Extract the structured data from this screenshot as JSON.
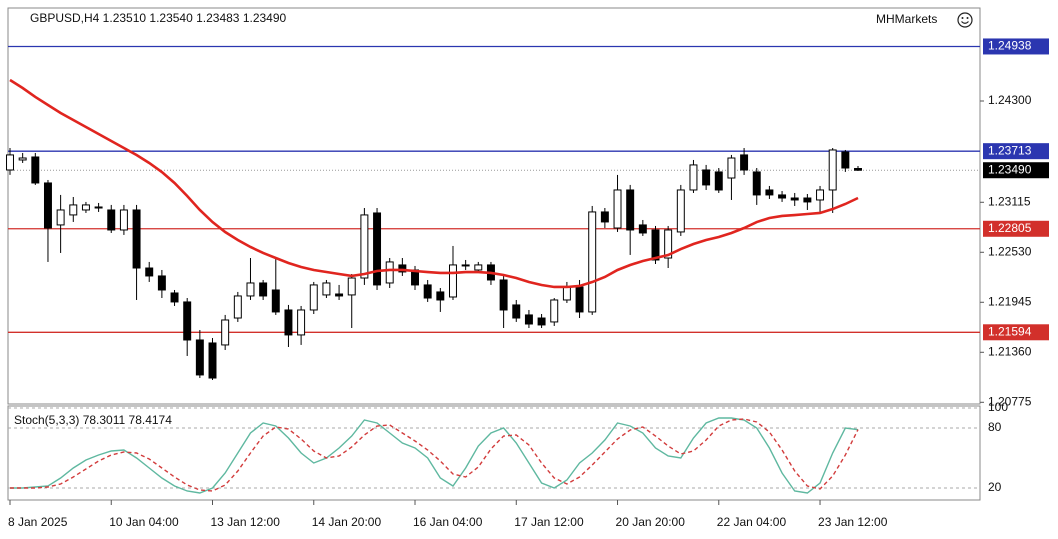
{
  "chart_data": [
    {
      "type": "candlestick",
      "title": "GBPUSD,H4 1.23510 1.23540 1.23483 1.23490",
      "brand": "MHMarkets",
      "categories": [
        "8 Jan 2025",
        null,
        null,
        null,
        null,
        null,
        null,
        null,
        "10 Jan 04:00",
        null,
        null,
        null,
        null,
        null,
        null,
        null,
        "13 Jan 12:00",
        null,
        null,
        null,
        null,
        null,
        null,
        null,
        "14 Jan 20:00",
        null,
        null,
        null,
        null,
        null,
        null,
        null,
        "16 Jan 04:00",
        null,
        null,
        null,
        null,
        null,
        null,
        null,
        "17 Jan 12:00",
        null,
        null,
        null,
        null,
        null,
        null,
        null,
        "20 Jan 20:00",
        null,
        null,
        null,
        null,
        null,
        null,
        null,
        "22 Jan 04:00",
        null,
        null,
        null,
        null,
        null,
        null,
        null,
        "23 Jan 12:00",
        null,
        null,
        null
      ],
      "open": [
        1.23493,
        1.2361,
        1.23645,
        1.23341,
        1.2285,
        1.22967,
        1.23025,
        1.23048,
        1.23025,
        1.22791,
        1.23025,
        1.22346,
        1.22253,
        1.22054,
        1.21949,
        1.21504,
        1.21469,
        1.21446,
        1.21761,
        1.22019,
        1.22171,
        1.22089,
        1.21855,
        1.21563,
        1.21855,
        1.22031,
        1.22042,
        1.22031,
        1.22229,
        1.2299,
        1.22171,
        1.22382,
        1.22323,
        1.22148,
        1.22066,
        1.22007,
        1.22382,
        1.22323,
        1.22382,
        1.22206,
        1.21914,
        1.21797,
        1.21761,
        1.21715,
        1.21972,
        1.22124,
        1.21832,
        1.23002,
        1.22814,
        1.23259,
        1.2285,
        1.22791,
        1.22463,
        1.22768,
        1.23259,
        1.23493,
        1.2347,
        1.23399,
        1.23669,
        1.2347,
        1.23259,
        1.23201,
        1.23165,
        1.23165,
        1.23142,
        1.23259,
        1.23704,
        1.2351
      ],
      "high": [
        1.2375,
        1.23692,
        1.23692,
        1.23376,
        1.23201,
        1.23177,
        1.23119,
        1.23107,
        1.23084,
        1.23084,
        1.23084,
        1.22417,
        1.22323,
        1.22089,
        1.21995,
        1.21621,
        1.21527,
        1.21797,
        1.22066,
        1.22463,
        1.22206,
        1.22463,
        1.21914,
        1.21902,
        1.22183,
        1.22206,
        1.22148,
        1.22276,
        1.23048,
        1.23048,
        1.22463,
        1.22463,
        1.2237,
        1.22206,
        1.22112,
        1.22604,
        1.2244,
        1.22417,
        1.22417,
        1.22253,
        1.21972,
        1.21855,
        1.21808,
        1.21995,
        1.22183,
        1.22206,
        1.23072,
        1.23048,
        1.23435,
        1.23318,
        1.22908,
        1.22838,
        1.22838,
        1.23318,
        1.2361,
        1.23552,
        1.23516,
        1.23669,
        1.2375,
        1.23516,
        1.23306,
        1.23247,
        1.23224,
        1.23212,
        1.23306,
        1.2375,
        1.23727,
        1.2354
      ],
      "low": [
        1.23435,
        1.23575,
        1.23318,
        1.22417,
        1.22522,
        1.22885,
        1.2299,
        1.23002,
        1.22756,
        1.22733,
        1.21972,
        1.22183,
        1.21995,
        1.21902,
        1.21317,
        1.21059,
        1.21036,
        1.21387,
        1.21715,
        1.21972,
        1.21972,
        1.21797,
        1.21422,
        1.21446,
        1.21808,
        1.21995,
        1.21972,
        1.21644,
        1.22148,
        1.22089,
        1.22112,
        1.22253,
        1.22089,
        1.21949,
        1.21832,
        1.21972,
        1.22323,
        1.22288,
        1.22148,
        1.21644,
        1.21715,
        1.21644,
        1.21644,
        1.21668,
        1.21937,
        1.21761,
        1.21797,
        1.22814,
        1.22768,
        1.22499,
        1.22721,
        1.22393,
        1.22346,
        1.22721,
        1.23224,
        1.23259,
        1.23224,
        1.23142,
        1.23435,
        1.23084,
        1.23154,
        1.23119,
        1.23072,
        1.23025,
        1.23002,
        1.2299,
        1.2347,
        1.23483
      ],
      "close": [
        1.23669,
        1.23633,
        1.23341,
        1.22814,
        1.23025,
        1.23084,
        1.23084,
        1.2306,
        1.22791,
        1.23025,
        1.22346,
        1.22253,
        1.22089,
        1.21949,
        1.21504,
        1.21095,
        1.21059,
        1.21738,
        1.22019,
        1.22171,
        1.22019,
        1.21832,
        1.21563,
        1.21855,
        1.22148,
        1.22171,
        1.22019,
        1.22229,
        1.22967,
        1.22148,
        1.22417,
        1.223,
        1.22148,
        1.21995,
        1.21972,
        1.22382,
        1.2237,
        1.22382,
        1.22206,
        1.21855,
        1.21761,
        1.21691,
        1.2168,
        1.21972,
        1.22124,
        1.21832,
        1.23002,
        1.22885,
        1.23259,
        1.22791,
        1.22756,
        1.2244,
        1.22791,
        1.23259,
        1.23552,
        1.23318,
        1.23259,
        1.23633,
        1.23493,
        1.23201,
        1.23201,
        1.23165,
        1.23142,
        1.23119,
        1.23259,
        1.23727,
        1.23516,
        1.2349
      ],
      "up_color": "#ffffff",
      "down_color": "#000000",
      "ma": {
        "color": "#e0251f",
        "values": [
          1.24546,
          1.24452,
          1.24347,
          1.24253,
          1.2416,
          1.24078,
          1.23996,
          1.23914,
          1.23832,
          1.2375,
          1.23668,
          1.23575,
          1.23469,
          1.23341,
          1.23189,
          1.23025,
          1.22884,
          1.22767,
          1.22674,
          1.22592,
          1.22522,
          1.22463,
          1.22405,
          1.22358,
          1.22323,
          1.22299,
          1.22276,
          1.22253,
          1.22276,
          1.22311,
          1.22323,
          1.22323,
          1.22311,
          1.22299,
          1.22288,
          1.22288,
          1.22299,
          1.22299,
          1.22288,
          1.22264,
          1.22229,
          1.22182,
          1.22147,
          1.22124,
          1.22124,
          1.22136,
          1.22182,
          1.22241,
          1.22323,
          1.22381,
          1.22428,
          1.22463,
          1.22498,
          1.22568,
          1.22627,
          1.22674,
          1.22709,
          1.22756,
          1.22814,
          1.22884,
          1.22931,
          1.22955,
          1.22966,
          1.22978,
          1.2299,
          1.23036,
          1.23095,
          1.23165
        ]
      },
      "levels": [
        {
          "value": 1.24938,
          "color": "#2b36b0"
        },
        {
          "value": 1.23713,
          "color": "#2b36b0"
        },
        {
          "value": 1.22805,
          "color": "#d2302b"
        },
        {
          "value": 1.21594,
          "color": "#d2302b"
        }
      ],
      "last_price": {
        "value": 1.2349,
        "label": "1.23490",
        "color": "#000000"
      },
      "ylim": [
        1.20755,
        1.25388
      ],
      "yticks": [
        {
          "value": 1.243,
          "label": "1.24300"
        },
        1.23115,
        {
          "value": 1.2253,
          "label": "1.22530"
        },
        1.21945,
        {
          "value": 1.2136,
          "label": "1.21360"
        },
        1.20775
      ]
    },
    {
      "type": "line",
      "title": "Stoch(5,3,3) 78.3011 78.4174",
      "series": [
        {
          "color": "#5fb8a0",
          "dashed": false,
          "values": [
            20,
            20,
            21,
            22,
            30,
            40,
            48,
            53,
            57,
            58,
            50,
            40,
            30,
            22,
            17,
            15,
            20,
            35,
            55,
            75,
            85,
            82,
            70,
            55,
            45,
            50,
            60,
            72,
            88,
            85,
            75,
            65,
            60,
            50,
            30,
            22,
            40,
            62,
            75,
            80,
            65,
            45,
            25,
            20,
            28,
            45,
            55,
            68,
            85,
            82,
            75,
            60,
            52,
            50,
            70,
            85,
            90,
            90,
            88,
            80,
            60,
            35,
            17,
            15,
            25,
            55,
            80,
            78.3011
          ]
        },
        {
          "color": "#d23c3c",
          "dashed": true,
          "values": [
            20,
            20,
            20,
            21,
            24,
            31,
            39,
            47,
            53,
            56,
            55,
            49,
            40,
            31,
            23,
            18,
            17,
            23,
            37,
            55,
            72,
            81,
            79,
            69,
            57,
            50,
            52,
            61,
            73,
            82,
            83,
            75,
            67,
            58,
            47,
            34,
            31,
            41,
            59,
            72,
            73,
            63,
            45,
            30,
            24,
            31,
            43,
            56,
            69,
            78,
            81,
            72,
            62,
            54,
            57,
            68,
            82,
            88,
            89,
            86,
            76,
            58,
            37,
            22,
            19,
            32,
            53,
            78.4174
          ]
        }
      ],
      "ylim": [
        8,
        102
      ],
      "yticks": [
        100,
        80,
        20
      ],
      "grid": true
    }
  ]
}
